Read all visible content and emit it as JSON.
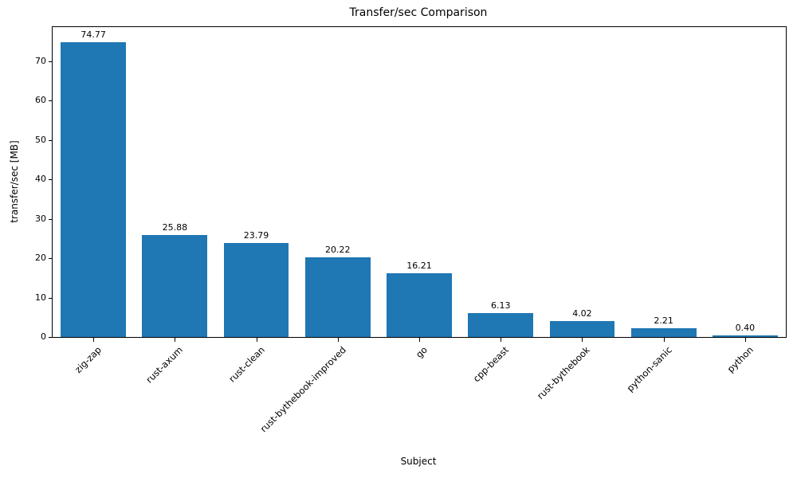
{
  "chart_data": {
    "type": "bar",
    "title": "Transfer/sec Comparison",
    "xlabel": "Subject",
    "ylabel": "transfer/sec [MB]",
    "categories": [
      "zig-zap",
      "rust-axum",
      "rust-clean",
      "rust-bythebook-improved",
      "go",
      "cpp-beast",
      "rust-bythebook",
      "python-sanic",
      "python"
    ],
    "values": [
      74.77,
      25.88,
      23.79,
      20.22,
      16.21,
      6.13,
      4.02,
      2.21,
      0.4
    ],
    "value_labels": [
      "74.77",
      "25.88",
      "23.79",
      "20.22",
      "16.21",
      "6.13",
      "4.02",
      "2.21",
      "0.40"
    ],
    "yticks": [
      0,
      10,
      20,
      30,
      40,
      50,
      60,
      70
    ],
    "ylim": [
      0,
      78.6
    ],
    "bar_color": "#1f77b4",
    "axis_color": "#000000",
    "grid": false,
    "legend": null
  }
}
